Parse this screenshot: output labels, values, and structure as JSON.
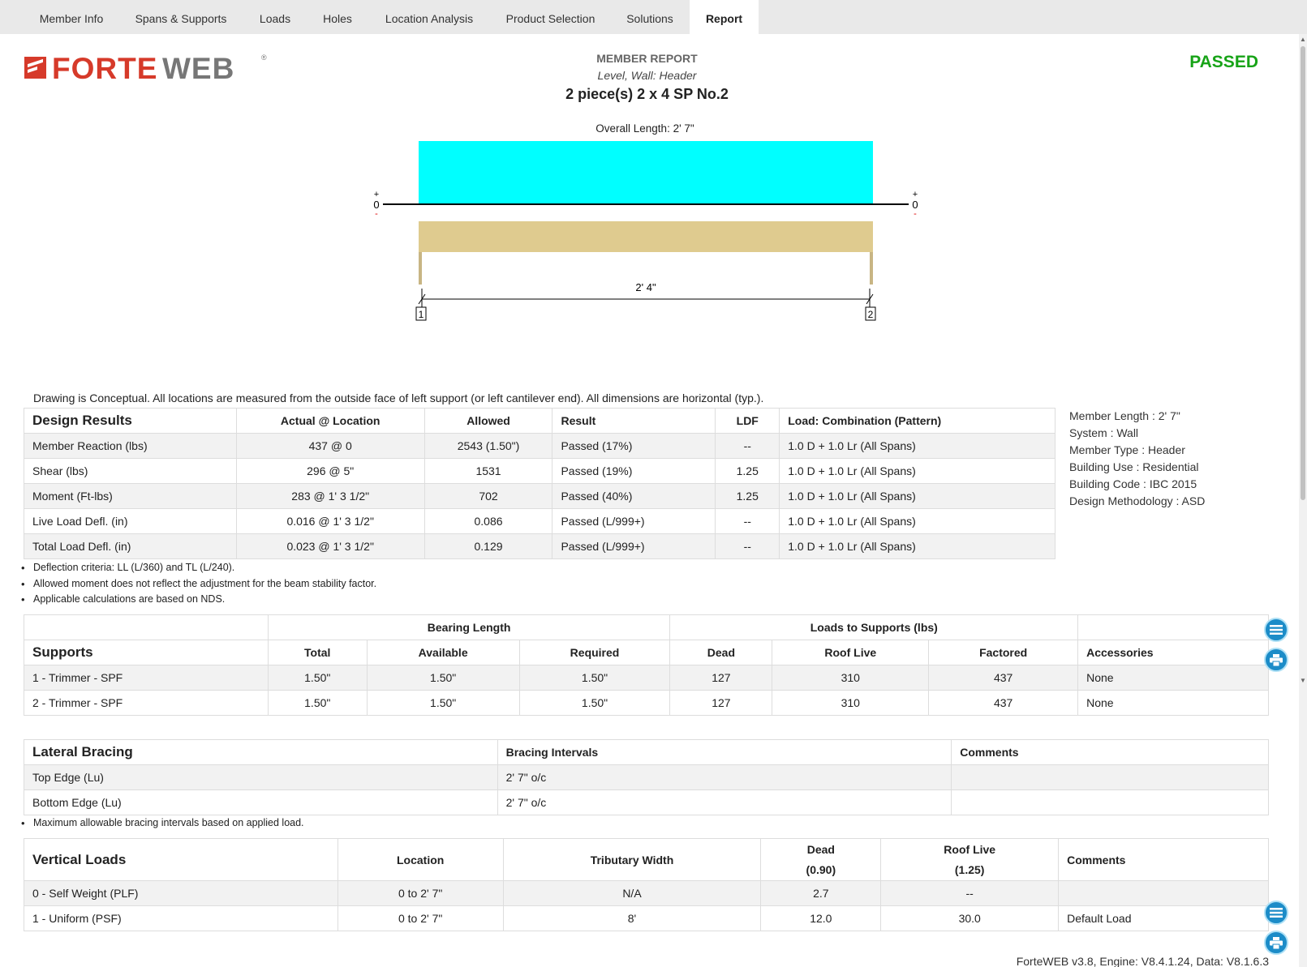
{
  "tabs": [
    "Member Info",
    "Spans & Supports",
    "Loads",
    "Holes",
    "Location Analysis",
    "Product Selection",
    "Solutions",
    "Report"
  ],
  "active_tab": "Report",
  "logo": {
    "part1": "FORTE",
    "part2": "WEB",
    "reg": "®"
  },
  "report": {
    "label": "MEMBER REPORT",
    "level": "Level, Wall: Header",
    "member": "2 piece(s) 2 x 4 SP No.2",
    "status": "PASSED"
  },
  "drawing": {
    "overall_length": "Overall Length: 2' 7\"",
    "span_length": "2' 4\"",
    "left_plus": "+",
    "left_zero": "0",
    "left_minus": "-",
    "right_plus": "+",
    "right_zero": "0",
    "right_minus": "-",
    "support_1": "1",
    "support_2": "2",
    "colors": {
      "load": "#00ffff",
      "member": "#dfcb8f"
    }
  },
  "drawing_note": "Drawing is Conceptual. All locations are measured from the outside face of left support (or left cantilever end). All dimensions are horizontal (typ.).",
  "design_results": {
    "title": "Design Results",
    "headers": [
      "Actual @ Location",
      "Allowed",
      "Result",
      "LDF",
      "Load: Combination (Pattern)"
    ],
    "rows": [
      [
        "Member Reaction (lbs)",
        "437 @ 0",
        "2543 (1.50\")",
        "Passed (17%)",
        "--",
        "1.0 D + 1.0 Lr (All Spans)"
      ],
      [
        "Shear (lbs)",
        "296 @ 5\"",
        "1531",
        "Passed (19%)",
        "1.25",
        "1.0 D + 1.0 Lr (All Spans)"
      ],
      [
        "Moment (Ft-lbs)",
        "283 @ 1' 3 1/2\"",
        "702",
        "Passed (40%)",
        "1.25",
        "1.0 D + 1.0 Lr (All Spans)"
      ],
      [
        "Live Load Defl. (in)",
        "0.016 @ 1' 3 1/2\"",
        "0.086",
        "Passed (L/999+)",
        "--",
        "1.0 D + 1.0 Lr (All Spans)"
      ],
      [
        "Total Load Defl. (in)",
        "0.023 @ 1' 3 1/2\"",
        "0.129",
        "Passed (L/999+)",
        "--",
        "1.0 D + 1.0 Lr (All Spans)"
      ]
    ],
    "notes": [
      "Deflection criteria: LL (L/360) and TL (L/240).",
      "Allowed moment does not reflect the adjustment for the beam stability factor.",
      "Applicable calculations are based on NDS."
    ]
  },
  "member_info": [
    "Member Length : 2' 7\"",
    "System : Wall",
    "Member Type : Header",
    "Building Use : Residential",
    "Building Code : IBC 2015",
    "Design Methodology : ASD"
  ],
  "supports": {
    "title": "Supports",
    "group_bearing": "Bearing Length",
    "group_loads": "Loads to Supports (lbs)",
    "headers": [
      "Total",
      "Available",
      "Required",
      "Dead",
      "Roof Live",
      "Factored",
      "Accessories"
    ],
    "rows": [
      [
        "1 - Trimmer - SPF",
        "1.50\"",
        "1.50\"",
        "1.50\"",
        "127",
        "310",
        "437",
        "None"
      ],
      [
        "2 - Trimmer - SPF",
        "1.50\"",
        "1.50\"",
        "1.50\"",
        "127",
        "310",
        "437",
        "None"
      ]
    ]
  },
  "lateral_bracing": {
    "title": "Lateral Bracing",
    "headers": [
      "Bracing Intervals",
      "Comments"
    ],
    "rows": [
      [
        "Top Edge (Lu)",
        "2' 7\" o/c",
        ""
      ],
      [
        "Bottom Edge (Lu)",
        "2' 7\" o/c",
        ""
      ]
    ],
    "notes": [
      "Maximum allowable bracing intervals based on applied load."
    ]
  },
  "vertical_loads": {
    "title": "Vertical Loads",
    "headers": [
      "Location",
      "Tributary Width",
      "Dead",
      "(0.90)",
      "Roof Live",
      "(1.25)",
      "Comments"
    ],
    "rows": [
      [
        "0 - Self Weight (PLF)",
        "0 to 2' 7\"",
        "N/A",
        "2.7",
        "--",
        ""
      ],
      [
        "1 - Uniform (PSF)",
        "0 to 2' 7\"",
        "8'",
        "12.0",
        "30.0",
        "Default Load"
      ]
    ]
  },
  "icons": {
    "list": "list-icon",
    "print": "print-icon"
  },
  "footer": "ForteWEB v3.8, Engine: V8.4.1.24, Data: V8.1.6.3"
}
